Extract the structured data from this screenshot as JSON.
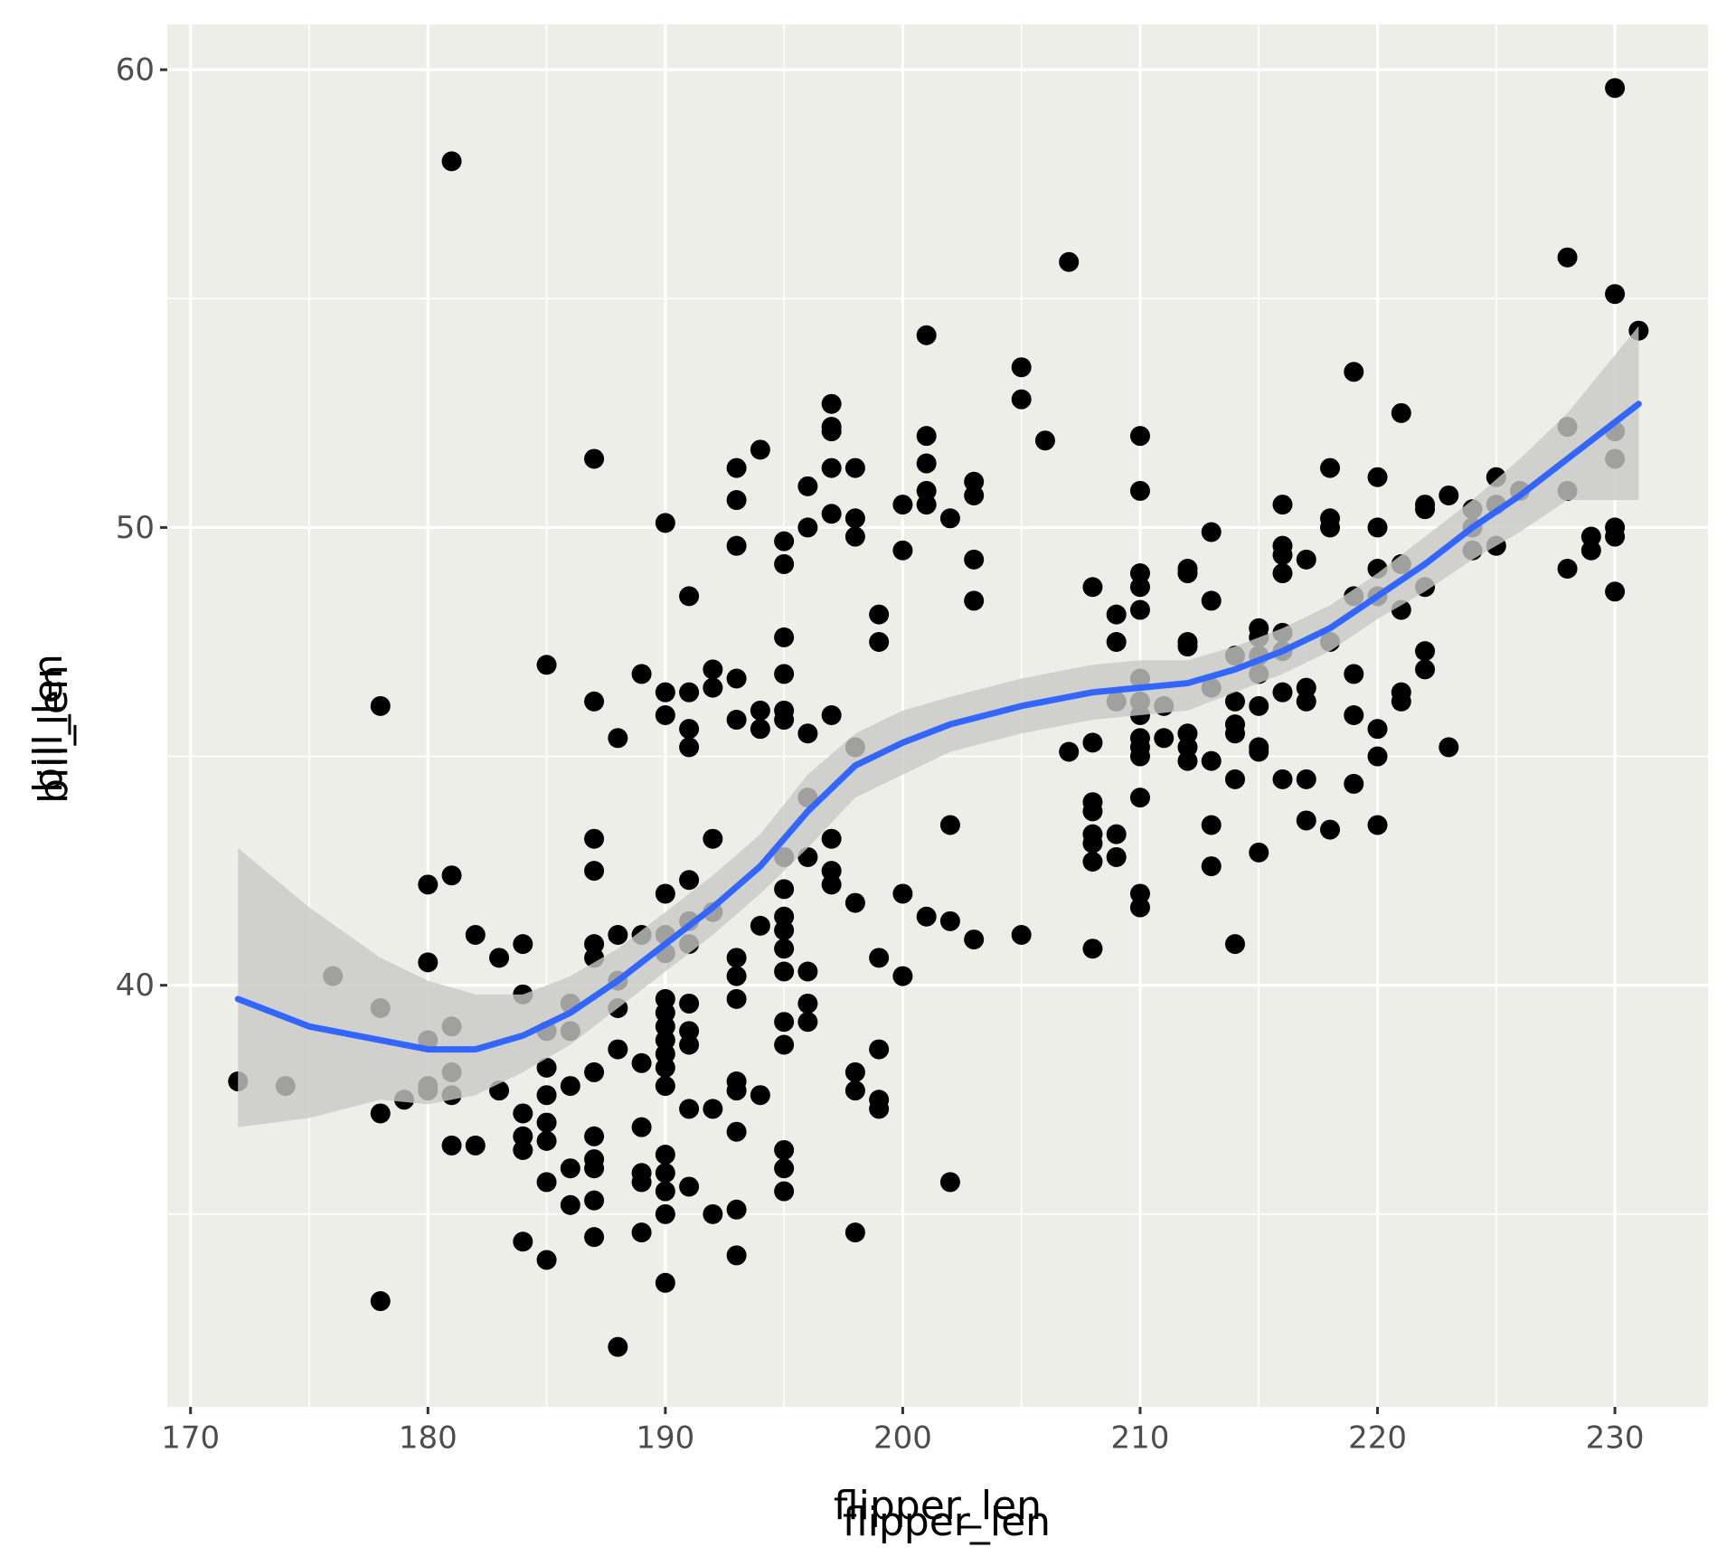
{
  "chart_data": {
    "type": "scatter",
    "x_label": "flipper_len",
    "y_label": "bill_len",
    "xlim": [
      169.02,
      233.92
    ],
    "ylim": [
      30.79,
      60.99
    ],
    "xticks": [
      170,
      180,
      190,
      200,
      210,
      220,
      230
    ],
    "yticks": [
      40,
      50,
      60
    ],
    "x_minor_ticks": [
      175,
      185,
      195,
      205,
      215,
      225
    ],
    "y_minor_ticks": [
      35,
      45,
      55
    ],
    "grid": true,
    "background": "#eeeee8",
    "point_color": "#000000",
    "line_color": "#3366ff",
    "band_color": "#c8c8c6",
    "points": [
      [
        172,
        37.9
      ],
      [
        174,
        37.8
      ],
      [
        176,
        40.2
      ],
      [
        178,
        46.1
      ],
      [
        178,
        39.5
      ],
      [
        178,
        37.2
      ],
      [
        178,
        33.1
      ],
      [
        179,
        37.5
      ],
      [
        180,
        42.2
      ],
      [
        180,
        40.5
      ],
      [
        180,
        38.8
      ],
      [
        180,
        37.8
      ],
      [
        180,
        37.7
      ],
      [
        181,
        58.0
      ],
      [
        181,
        42.4
      ],
      [
        181,
        39.1
      ],
      [
        181,
        38.1
      ],
      [
        181,
        37.6
      ],
      [
        181,
        36.5
      ],
      [
        182,
        41.1
      ],
      [
        182,
        36.5
      ],
      [
        183,
        40.6
      ],
      [
        183,
        37.7
      ],
      [
        184,
        40.9
      ],
      [
        184,
        39.8
      ],
      [
        184,
        37.2
      ],
      [
        184,
        36.7
      ],
      [
        184,
        36.4
      ],
      [
        184,
        34.4
      ],
      [
        185,
        47.0
      ],
      [
        185,
        39.0
      ],
      [
        185,
        38.2
      ],
      [
        185,
        37.6
      ],
      [
        185,
        37.0
      ],
      [
        185,
        36.6
      ],
      [
        185,
        35.7
      ],
      [
        185,
        34.0
      ],
      [
        186,
        39.6
      ],
      [
        186,
        39.0
      ],
      [
        186,
        37.8
      ],
      [
        186,
        36.0
      ],
      [
        186,
        35.2
      ],
      [
        187,
        51.5
      ],
      [
        187,
        46.2
      ],
      [
        187,
        43.2
      ],
      [
        187,
        42.5
      ],
      [
        187,
        40.9
      ],
      [
        187,
        40.6
      ],
      [
        187,
        38.1
      ],
      [
        187,
        36.7
      ],
      [
        187,
        36.2
      ],
      [
        187,
        36.0
      ],
      [
        187,
        35.3
      ],
      [
        187,
        34.5
      ],
      [
        188,
        45.4
      ],
      [
        188,
        41.1
      ],
      [
        188,
        40.1
      ],
      [
        188,
        39.5
      ],
      [
        188,
        38.6
      ],
      [
        188,
        32.1
      ],
      [
        189,
        46.8
      ],
      [
        189,
        41.1
      ],
      [
        189,
        38.3
      ],
      [
        189,
        36.9
      ],
      [
        189,
        35.9
      ],
      [
        189,
        35.7
      ],
      [
        189,
        34.6
      ],
      [
        190,
        50.1
      ],
      [
        190,
        46.4
      ],
      [
        190,
        45.9
      ],
      [
        190,
        42.0
      ],
      [
        190,
        41.1
      ],
      [
        190,
        40.7
      ],
      [
        190,
        39.7
      ],
      [
        190,
        39.4
      ],
      [
        190,
        39.1
      ],
      [
        190,
        38.8
      ],
      [
        190,
        38.5
      ],
      [
        190,
        38.2
      ],
      [
        190,
        37.8
      ],
      [
        190,
        36.3
      ],
      [
        190,
        35.9
      ],
      [
        190,
        35.5
      ],
      [
        190,
        35.0
      ],
      [
        190,
        33.5
      ],
      [
        191,
        48.5
      ],
      [
        191,
        46.4
      ],
      [
        191,
        45.6
      ],
      [
        191,
        45.2
      ],
      [
        191,
        42.3
      ],
      [
        191,
        41.4
      ],
      [
        191,
        40.9
      ],
      [
        191,
        39.6
      ],
      [
        191,
        39.0
      ],
      [
        191,
        38.7
      ],
      [
        191,
        37.3
      ],
      [
        191,
        35.6
      ],
      [
        192,
        46.9
      ],
      [
        192,
        46.5
      ],
      [
        192,
        43.2
      ],
      [
        192,
        41.6
      ],
      [
        192,
        37.3
      ],
      [
        192,
        35.0
      ],
      [
        193,
        51.3
      ],
      [
        193,
        50.6
      ],
      [
        193,
        49.6
      ],
      [
        193,
        46.7
      ],
      [
        193,
        45.8
      ],
      [
        193,
        40.6
      ],
      [
        193,
        40.2
      ],
      [
        193,
        39.7
      ],
      [
        193,
        37.9
      ],
      [
        193,
        37.7
      ],
      [
        193,
        36.8
      ],
      [
        193,
        35.1
      ],
      [
        193,
        34.1
      ],
      [
        194,
        51.7
      ],
      [
        194,
        46.0
      ],
      [
        194,
        45.6
      ],
      [
        194,
        41.3
      ],
      [
        194,
        37.6
      ],
      [
        195,
        49.7
      ],
      [
        195,
        49.2
      ],
      [
        195,
        47.6
      ],
      [
        195,
        46.8
      ],
      [
        195,
        46.0
      ],
      [
        195,
        45.8
      ],
      [
        195,
        42.8
      ],
      [
        195,
        42.1
      ],
      [
        195,
        41.5
      ],
      [
        195,
        41.2
      ],
      [
        195,
        40.8
      ],
      [
        195,
        40.3
      ],
      [
        195,
        39.2
      ],
      [
        195,
        38.7
      ],
      [
        195,
        36.4
      ],
      [
        195,
        36.0
      ],
      [
        195,
        35.5
      ],
      [
        196,
        50.9
      ],
      [
        196,
        50.0
      ],
      [
        196,
        45.5
      ],
      [
        196,
        44.1
      ],
      [
        196,
        42.8
      ],
      [
        196,
        40.3
      ],
      [
        196,
        39.6
      ],
      [
        196,
        39.2
      ],
      [
        197,
        52.7
      ],
      [
        197,
        52.2
      ],
      [
        197,
        52.1
      ],
      [
        197,
        51.3
      ],
      [
        197,
        50.3
      ],
      [
        197,
        45.9
      ],
      [
        197,
        43.2
      ],
      [
        197,
        42.5
      ],
      [
        197,
        42.2
      ],
      [
        198,
        51.3
      ],
      [
        198,
        50.2
      ],
      [
        198,
        49.8
      ],
      [
        198,
        45.2
      ],
      [
        198,
        41.8
      ],
      [
        198,
        38.1
      ],
      [
        198,
        37.7
      ],
      [
        198,
        34.6
      ],
      [
        199,
        48.1
      ],
      [
        199,
        47.5
      ],
      [
        199,
        40.6
      ],
      [
        199,
        38.6
      ],
      [
        199,
        37.5
      ],
      [
        199,
        37.3
      ],
      [
        200,
        50.5
      ],
      [
        200,
        49.5
      ],
      [
        200,
        42.0
      ],
      [
        200,
        40.2
      ],
      [
        201,
        54.2
      ],
      [
        201,
        52.0
      ],
      [
        201,
        51.4
      ],
      [
        201,
        50.8
      ],
      [
        201,
        50.5
      ],
      [
        201,
        41.5
      ],
      [
        202,
        50.2
      ],
      [
        202,
        43.5
      ],
      [
        202,
        41.4
      ],
      [
        202,
        35.7
      ],
      [
        203,
        51.0
      ],
      [
        203,
        50.7
      ],
      [
        203,
        49.3
      ],
      [
        203,
        48.4
      ],
      [
        203,
        41.0
      ],
      [
        205,
        53.5
      ],
      [
        205,
        52.8
      ],
      [
        205,
        41.1
      ],
      [
        206,
        51.9
      ],
      [
        207,
        55.8
      ],
      [
        207,
        45.1
      ],
      [
        208,
        48.7
      ],
      [
        208,
        45.3
      ],
      [
        208,
        44.0
      ],
      [
        208,
        43.8
      ],
      [
        208,
        43.3
      ],
      [
        208,
        43.1
      ],
      [
        208,
        42.7
      ],
      [
        208,
        40.8
      ],
      [
        209,
        48.1
      ],
      [
        209,
        47.5
      ],
      [
        209,
        46.2
      ],
      [
        209,
        43.3
      ],
      [
        209,
        42.8
      ],
      [
        210,
        52.0
      ],
      [
        210,
        50.8
      ],
      [
        210,
        49.0
      ],
      [
        210,
        48.7
      ],
      [
        210,
        48.2
      ],
      [
        210,
        46.7
      ],
      [
        210,
        46.2
      ],
      [
        210,
        45.9
      ],
      [
        210,
        45.4
      ],
      [
        210,
        45.2
      ],
      [
        210,
        45.0
      ],
      [
        210,
        44.1
      ],
      [
        210,
        42.0
      ],
      [
        210,
        41.7
      ],
      [
        211,
        46.1
      ],
      [
        211,
        45.4
      ],
      [
        212,
        49.1
      ],
      [
        212,
        49.0
      ],
      [
        212,
        47.5
      ],
      [
        212,
        47.4
      ],
      [
        212,
        45.5
      ],
      [
        212,
        45.2
      ],
      [
        212,
        44.9
      ],
      [
        213,
        49.9
      ],
      [
        213,
        48.4
      ],
      [
        213,
        46.5
      ],
      [
        213,
        44.9
      ],
      [
        213,
        43.5
      ],
      [
        213,
        42.6
      ],
      [
        214,
        47.2
      ],
      [
        214,
        46.2
      ],
      [
        214,
        45.7
      ],
      [
        214,
        45.5
      ],
      [
        214,
        44.5
      ],
      [
        214,
        40.9
      ],
      [
        215,
        47.8
      ],
      [
        215,
        47.6
      ],
      [
        215,
        47.2
      ],
      [
        215,
        46.8
      ],
      [
        215,
        46.1
      ],
      [
        215,
        45.2
      ],
      [
        215,
        45.1
      ],
      [
        215,
        42.9
      ],
      [
        216,
        50.5
      ],
      [
        216,
        49.6
      ],
      [
        216,
        49.4
      ],
      [
        216,
        49.0
      ],
      [
        216,
        47.7
      ],
      [
        216,
        47.3
      ],
      [
        216,
        46.4
      ],
      [
        216,
        44.5
      ],
      [
        217,
        49.3
      ],
      [
        217,
        46.5
      ],
      [
        217,
        46.2
      ],
      [
        217,
        44.5
      ],
      [
        217,
        43.6
      ],
      [
        218,
        51.3
      ],
      [
        218,
        50.2
      ],
      [
        218,
        50.0
      ],
      [
        218,
        47.5
      ],
      [
        218,
        43.4
      ],
      [
        219,
        53.4
      ],
      [
        219,
        48.5
      ],
      [
        219,
        46.8
      ],
      [
        219,
        45.9
      ],
      [
        219,
        44.4
      ],
      [
        220,
        51.1
      ],
      [
        220,
        50.0
      ],
      [
        220,
        49.1
      ],
      [
        220,
        48.5
      ],
      [
        220,
        45.6
      ],
      [
        220,
        45.0
      ],
      [
        220,
        43.5
      ],
      [
        221,
        52.5
      ],
      [
        221,
        49.2
      ],
      [
        221,
        48.2
      ],
      [
        221,
        46.4
      ],
      [
        221,
        46.2
      ],
      [
        222,
        50.5
      ],
      [
        222,
        50.4
      ],
      [
        222,
        48.7
      ],
      [
        222,
        47.3
      ],
      [
        222,
        46.9
      ],
      [
        223,
        50.7
      ],
      [
        223,
        45.2
      ],
      [
        224,
        50.4
      ],
      [
        224,
        50.0
      ],
      [
        224,
        49.5
      ],
      [
        225,
        51.1
      ],
      [
        225,
        50.5
      ],
      [
        225,
        49.6
      ],
      [
        226,
        50.8
      ],
      [
        228,
        55.9
      ],
      [
        228,
        52.2
      ],
      [
        228,
        50.8
      ],
      [
        228,
        49.1
      ],
      [
        229,
        49.8
      ],
      [
        229,
        49.5
      ],
      [
        230,
        59.6
      ],
      [
        230,
        55.1
      ],
      [
        230,
        52.1
      ],
      [
        230,
        51.5
      ],
      [
        230,
        50.0
      ],
      [
        230,
        49.8
      ],
      [
        230,
        48.6
      ],
      [
        231,
        54.3
      ]
    ],
    "smooth": {
      "x": [
        172,
        175,
        178,
        180,
        182,
        184,
        186,
        188,
        190,
        192,
        194,
        196,
        198,
        200,
        202,
        205,
        208,
        210,
        212,
        214,
        216,
        218,
        220,
        222,
        224,
        226,
        228,
        231
      ],
      "y": [
        39.7,
        39.1,
        38.8,
        38.6,
        38.6,
        38.9,
        39.4,
        40.1,
        40.9,
        41.7,
        42.6,
        43.8,
        44.8,
        45.3,
        45.7,
        46.1,
        46.4,
        46.5,
        46.6,
        46.9,
        47.3,
        47.8,
        48.5,
        49.2,
        50.0,
        50.7,
        51.5,
        52.7
      ],
      "lower": [
        36.9,
        37.1,
        37.5,
        37.4,
        37.6,
        38.1,
        38.7,
        39.5,
        40.3,
        41.1,
        42.0,
        43.0,
        44.1,
        44.6,
        45.1,
        45.5,
        45.8,
        45.9,
        46.0,
        46.4,
        46.8,
        47.3,
        48.0,
        48.6,
        49.3,
        49.9,
        50.6,
        50.6
      ],
      "upper": [
        43.0,
        41.7,
        40.6,
        40.1,
        39.8,
        39.8,
        40.2,
        40.8,
        41.6,
        42.4,
        43.3,
        44.6,
        45.5,
        46.0,
        46.3,
        46.7,
        47.0,
        47.1,
        47.1,
        47.4,
        47.8,
        48.3,
        49.0,
        49.8,
        50.6,
        51.5,
        52.5,
        54.4
      ]
    }
  }
}
